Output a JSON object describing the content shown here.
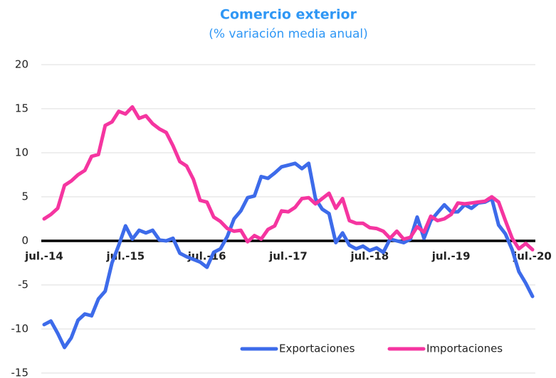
{
  "chart_data": {
    "type": "line",
    "title": "Comercio exterior",
    "subtitle": "(% variación media anual)",
    "categories": [
      "jul.-14",
      null,
      null,
      null,
      null,
      null,
      null,
      null,
      null,
      null,
      null,
      null,
      "jul.-15",
      null,
      null,
      null,
      null,
      null,
      null,
      null,
      null,
      null,
      null,
      null,
      "jul.-16",
      null,
      null,
      null,
      null,
      null,
      null,
      null,
      null,
      null,
      null,
      null,
      "jul.-17",
      null,
      null,
      null,
      null,
      null,
      null,
      null,
      null,
      null,
      null,
      null,
      "jul.-18",
      null,
      null,
      null,
      null,
      null,
      null,
      null,
      null,
      null,
      null,
      null,
      "jul.-19",
      null,
      null,
      null,
      null,
      null,
      null,
      null,
      null,
      null,
      null,
      null,
      "jul.-20"
    ],
    "series": [
      {
        "name": "Exportaciones",
        "color": "#3d6bea",
        "values": [
          -9.5,
          -9.1,
          -10.5,
          -12.1,
          -11,
          -9,
          -8.3,
          -8.5,
          -6.6,
          -5.7,
          -2.5,
          -0.5,
          1.7,
          0.2,
          1.2,
          0.9,
          1.2,
          0.1,
          0,
          0.3,
          -1.4,
          -1.8,
          -2.1,
          -2.4,
          -3.0,
          -1.3,
          -0.9,
          0.5,
          2.5,
          3.4,
          4.9,
          5.1,
          7.3,
          7.1,
          7.7,
          8.4,
          8.6,
          8.8,
          8.2,
          8.8,
          4.8,
          3.6,
          3.1,
          -0.2,
          0.9,
          -0.5,
          -0.9,
          -0.6,
          -1.1,
          -0.8,
          -1.3,
          0.2,
          0,
          -0.2,
          0.2,
          2.7,
          0.3,
          2.3,
          3.2,
          4.1,
          3.3,
          3.3,
          4.1,
          3.7,
          4.3,
          4.4,
          4.8,
          1.8,
          0.8,
          -1.0,
          -3.5,
          -4.8,
          -6.3
        ]
      },
      {
        "name": "Importaciones",
        "color": "#f535a0",
        "values": [
          2.5,
          3.0,
          3.7,
          6.3,
          6.8,
          7.5,
          8.0,
          9.6,
          9.8,
          13.1,
          13.5,
          14.7,
          14.4,
          15.2,
          13.9,
          14.2,
          13.3,
          12.7,
          12.3,
          10.8,
          9.0,
          8.5,
          7.0,
          4.6,
          4.4,
          2.7,
          2.2,
          1.4,
          1.1,
          1.2,
          -0.1,
          0.6,
          0.2,
          1.3,
          1.7,
          3.4,
          3.3,
          3.8,
          4.8,
          4.9,
          4.2,
          4.8,
          5.4,
          3.7,
          4.8,
          2.3,
          2.0,
          2.0,
          1.5,
          1.4,
          1.1,
          0.3,
          1.1,
          0.2,
          0.4,
          1.6,
          1.0,
          2.8,
          2.3,
          2.5,
          3.0,
          4.3,
          4.2,
          4.3,
          4.4,
          4.5,
          5.0,
          4.4,
          2.3,
          0.3,
          -0.9,
          -0.3,
          -1.0
        ]
      }
    ],
    "ylim": [
      -15,
      20
    ],
    "yticks": [
      -15,
      -10,
      -5,
      0,
      5,
      10,
      15,
      20
    ],
    "grid": true,
    "legend": "lower right"
  }
}
